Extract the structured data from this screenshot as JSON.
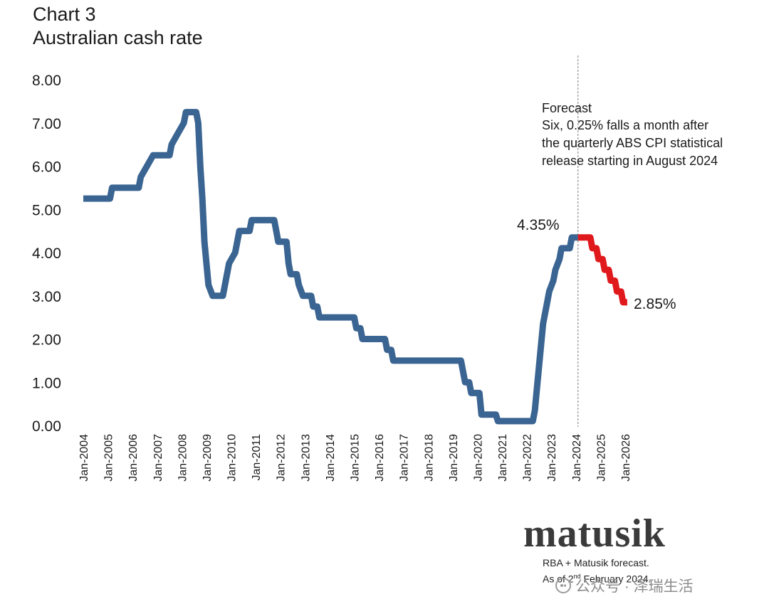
{
  "header": {
    "chart_number": "Chart 3",
    "title": "Australian cash rate"
  },
  "chart_data": {
    "type": "line",
    "title": "Australian cash rate",
    "ylim": [
      0,
      8
    ],
    "y_ticks": [
      "0.00",
      "1.00",
      "2.00",
      "3.00",
      "4.00",
      "5.00",
      "6.00",
      "7.00",
      "8.00"
    ],
    "x_ticks": [
      "Jan-2004",
      "Jan-2005",
      "Jan-2006",
      "Jan-2007",
      "Jan-2008",
      "Jan-2009",
      "Jan-2010",
      "Jan-2011",
      "Jan-2012",
      "Jan-2013",
      "Jan-2014",
      "Jan-2015",
      "Jan-2016",
      "Jan-2017",
      "Jan-2018",
      "Jan-2019",
      "Jan-2020",
      "Jan-2021",
      "Jan-2022",
      "Jan-2023",
      "Jan-2024",
      "Jan-2025",
      "Jan-2026"
    ],
    "grid": false,
    "series": [
      {
        "role": "actual",
        "color": "#3a6491",
        "points": [
          [
            "2004-01",
            5.25
          ],
          [
            "2005-02",
            5.25
          ],
          [
            "2005-03",
            5.5
          ],
          [
            "2006-04",
            5.5
          ],
          [
            "2006-05",
            5.75
          ],
          [
            "2006-08",
            6.0
          ],
          [
            "2006-11",
            6.25
          ],
          [
            "2007-07",
            6.25
          ],
          [
            "2007-08",
            6.5
          ],
          [
            "2007-11",
            6.75
          ],
          [
            "2008-02",
            7.0
          ],
          [
            "2008-03",
            7.25
          ],
          [
            "2008-08",
            7.25
          ],
          [
            "2008-09",
            7.0
          ],
          [
            "2008-10",
            6.0
          ],
          [
            "2008-11",
            5.25
          ],
          [
            "2008-12",
            4.25
          ],
          [
            "2009-02",
            3.25
          ],
          [
            "2009-04",
            3.0
          ],
          [
            "2009-09",
            3.0
          ],
          [
            "2009-10",
            3.25
          ],
          [
            "2009-11",
            3.5
          ],
          [
            "2009-12",
            3.75
          ],
          [
            "2010-03",
            4.0
          ],
          [
            "2010-04",
            4.25
          ],
          [
            "2010-05",
            4.5
          ],
          [
            "2010-10",
            4.5
          ],
          [
            "2010-11",
            4.75
          ],
          [
            "2011-10",
            4.75
          ],
          [
            "2011-11",
            4.5
          ],
          [
            "2011-12",
            4.25
          ],
          [
            "2012-04",
            4.25
          ],
          [
            "2012-05",
            3.75
          ],
          [
            "2012-06",
            3.5
          ],
          [
            "2012-09",
            3.5
          ],
          [
            "2012-10",
            3.25
          ],
          [
            "2012-12",
            3.0
          ],
          [
            "2013-04",
            3.0
          ],
          [
            "2013-05",
            2.75
          ],
          [
            "2013-07",
            2.75
          ],
          [
            "2013-08",
            2.5
          ],
          [
            "2015-01",
            2.5
          ],
          [
            "2015-02",
            2.25
          ],
          [
            "2015-04",
            2.25
          ],
          [
            "2015-05",
            2.0
          ],
          [
            "2016-04",
            2.0
          ],
          [
            "2016-05",
            1.75
          ],
          [
            "2016-07",
            1.75
          ],
          [
            "2016-08",
            1.5
          ],
          [
            "2019-05",
            1.5
          ],
          [
            "2019-06",
            1.25
          ],
          [
            "2019-07",
            1.0
          ],
          [
            "2019-09",
            1.0
          ],
          [
            "2019-10",
            0.75
          ],
          [
            "2020-02",
            0.75
          ],
          [
            "2020-03",
            0.25
          ],
          [
            "2020-10",
            0.25
          ],
          [
            "2020-11",
            0.1
          ],
          [
            "2022-04",
            0.1
          ],
          [
            "2022-05",
            0.35
          ],
          [
            "2022-06",
            0.85
          ],
          [
            "2022-07",
            1.35
          ],
          [
            "2022-08",
            1.85
          ],
          [
            "2022-09",
            2.35
          ],
          [
            "2022-10",
            2.6
          ],
          [
            "2022-11",
            2.85
          ],
          [
            "2022-12",
            3.1
          ],
          [
            "2023-02",
            3.35
          ],
          [
            "2023-03",
            3.6
          ],
          [
            "2023-05",
            3.85
          ],
          [
            "2023-06",
            4.1
          ],
          [
            "2023-10",
            4.1
          ],
          [
            "2023-11",
            4.35
          ],
          [
            "2024-02",
            4.35
          ]
        ]
      },
      {
        "role": "forecast",
        "color": "#e0191c",
        "points": [
          [
            "2024-02",
            4.35
          ],
          [
            "2024-08",
            4.35
          ],
          [
            "2024-09",
            4.1
          ],
          [
            "2024-11",
            4.1
          ],
          [
            "2024-12",
            3.85
          ],
          [
            "2025-02",
            3.85
          ],
          [
            "2025-03",
            3.6
          ],
          [
            "2025-05",
            3.6
          ],
          [
            "2025-06",
            3.35
          ],
          [
            "2025-08",
            3.35
          ],
          [
            "2025-09",
            3.1
          ],
          [
            "2025-11",
            3.1
          ],
          [
            "2025-12",
            2.85
          ],
          [
            "2026-02",
            2.85
          ]
        ]
      }
    ],
    "forecast_divider_x": "2024-02",
    "annotations": {
      "forecast_heading": "Forecast",
      "forecast_lines": [
        "Six, 0.25% falls a month after",
        "the quarterly ABS CPI statistical",
        "release starting in August 2024"
      ],
      "label_current": "4.35%",
      "label_end": "2.85%"
    }
  },
  "branding": {
    "logo_text": "matusik",
    "credit_line1": "RBA + Matusik forecast.",
    "credit_line2_a": "As of 2",
    "credit_line2_sup": "nd",
    "credit_line2_b": " February 2024.",
    "watermark_text": "公众号 · 泽瑞生活",
    "watermark_icon": "wechat-icon"
  }
}
